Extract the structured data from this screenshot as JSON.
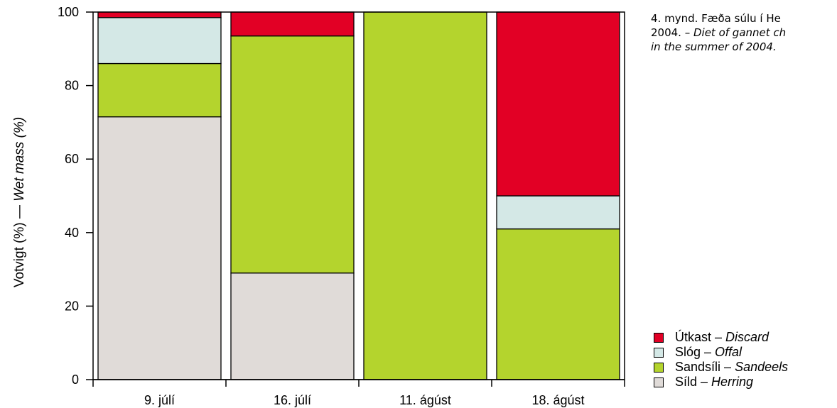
{
  "caption": {
    "line1": "4. mynd. Fæða súlu í He",
    "line2_prefix": "2004. – ",
    "line2_en": "Diet of gannet ch",
    "line3_en": "in the summer of 2004."
  },
  "chart_data": {
    "type": "bar",
    "stacked": true,
    "ylabel_is": "Votvigt (%) — ",
    "ylabel_en": "Wet mass (%)",
    "ylim": [
      0,
      100
    ],
    "yticks": [
      0,
      20,
      40,
      60,
      80,
      100
    ],
    "categories": [
      "9. júlí",
      "16. júlí",
      "11. ágúst",
      "18. ágúst"
    ],
    "series": [
      {
        "name_is": "Síld",
        "name_en": "Herring",
        "color": "#e0dbd8",
        "values": [
          71.5,
          29,
          0,
          0
        ]
      },
      {
        "name_is": "Sandsíli",
        "name_en": "Sandeels",
        "color": "#b4d42d",
        "values": [
          14.5,
          64.5,
          100,
          41
        ]
      },
      {
        "name_is": "Slóg",
        "name_en": "Offal",
        "color": "#d4e8e6",
        "values": [
          12.5,
          0,
          0,
          9
        ]
      },
      {
        "name_is": "Útkast",
        "name_en": "Discard",
        "color": "#e20025",
        "values": [
          1.5,
          6.5,
          0,
          50
        ]
      }
    ],
    "legend_order": [
      3,
      2,
      1,
      0
    ],
    "legend_position": "bottom-right",
    "grid": false
  }
}
